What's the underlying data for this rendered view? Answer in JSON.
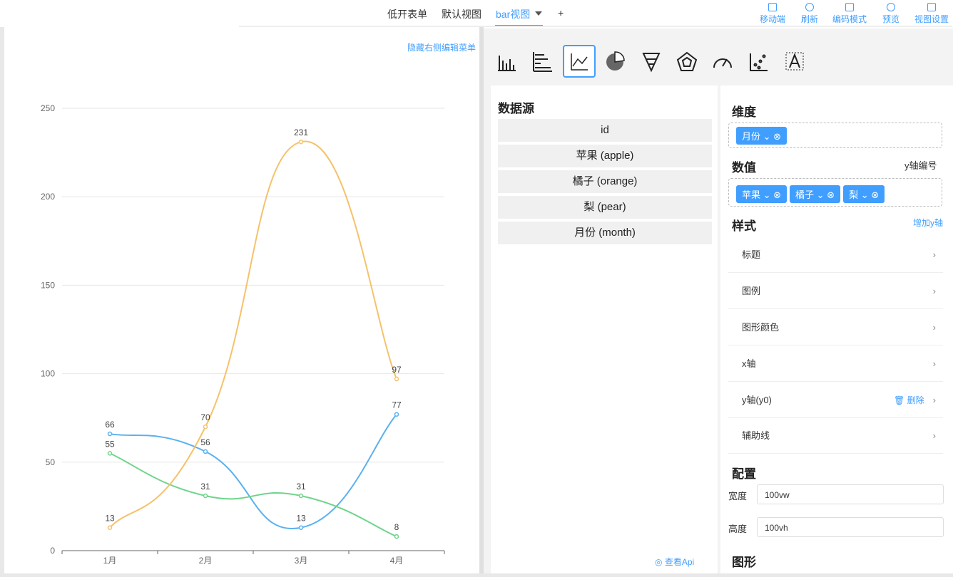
{
  "tabs": [
    "低开表单",
    "默认视图",
    "bar视图",
    "+"
  ],
  "toolbar": [
    "移动端",
    "刷新",
    "编码模式",
    "预览",
    "视图设置"
  ],
  "hide_menu": "隐藏右侧编辑菜单",
  "chart_data": {
    "type": "line",
    "categories": [
      "1月",
      "2月",
      "3月",
      "4月"
    ],
    "series": [
      {
        "color": "#5ab1ef",
        "values": [
          66,
          56,
          13,
          77
        ]
      },
      {
        "color": "#6fd48b",
        "values": [
          55,
          31,
          31,
          8
        ]
      },
      {
        "color": "#f5c26b",
        "values": [
          13,
          70,
          231,
          97
        ]
      }
    ],
    "ylim": [
      0,
      250
    ],
    "yticks": [
      0,
      50,
      100,
      150,
      200,
      250
    ],
    "grid": true,
    "smooth": true
  },
  "datasource": {
    "title": "数据源",
    "fields": [
      "id",
      "苹果 (apple)",
      "橘子 (orange)",
      "梨 (pear)",
      "月份 (month)"
    ]
  },
  "dimension": {
    "title": "维度",
    "tags": [
      "月份"
    ]
  },
  "measures": {
    "title": "数值",
    "right": "y轴编号",
    "tags": [
      "苹果",
      "橘子",
      "梨"
    ]
  },
  "style": {
    "title": "样式",
    "action": "增加y轴",
    "items": [
      "标题",
      "图例",
      "图形颜色",
      "x轴",
      "y轴(y0)",
      "辅助线"
    ],
    "delete": "删除"
  },
  "config": {
    "title": "配置",
    "fields": [
      {
        "label": "宽度",
        "value": "100vw"
      },
      {
        "label": "高度",
        "value": "100vh"
      }
    ]
  },
  "graph_title": "图形",
  "api": "查看Api"
}
